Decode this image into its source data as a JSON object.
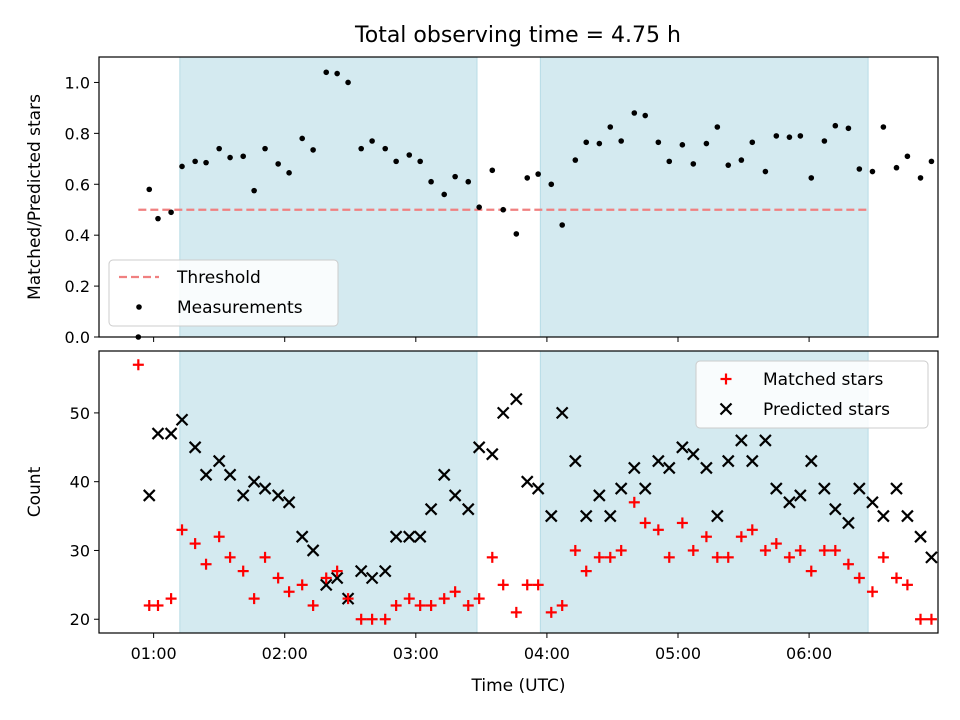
{
  "title": "Total observing time = 4.75 h",
  "chart_data": [
    {
      "type": "scatter",
      "panel": "top",
      "ylabel": "Matched/Predicted stars",
      "ylim": [
        0,
        1.1
      ],
      "yticks": [
        0.0,
        0.2,
        0.4,
        0.6,
        0.8,
        1.0
      ],
      "ytick_labels": [
        "0.0",
        "0.2",
        "0.4",
        "0.6",
        "0.8",
        "1.0"
      ],
      "xlim": [
        "00:35",
        "06:59"
      ],
      "threshold": {
        "name": "Threshold",
        "value": 0.5,
        "x_range": [
          "00:53",
          "06:27"
        ],
        "color": "#f08080"
      },
      "shaded_intervals": [
        [
          "01:12",
          "03:28"
        ],
        [
          "03:57",
          "06:27"
        ]
      ],
      "legend_position": "lower left",
      "series": [
        {
          "name": "Measurements",
          "color": "#000000",
          "points": [
            [
              "00:53",
              0.0
            ],
            [
              "00:58",
              0.58
            ],
            [
              "01:02",
              0.465
            ],
            [
              "01:08",
              0.49
            ],
            [
              "01:13",
              0.67
            ],
            [
              "01:19",
              0.69
            ],
            [
              "01:24",
              0.685
            ],
            [
              "01:30",
              0.74
            ],
            [
              "01:35",
              0.705
            ],
            [
              "01:41",
              0.71
            ],
            [
              "01:46",
              0.575
            ],
            [
              "01:51",
              0.74
            ],
            [
              "01:57",
              0.68
            ],
            [
              "02:02",
              0.645
            ],
            [
              "02:08",
              0.78
            ],
            [
              "02:13",
              0.735
            ],
            [
              "02:19",
              1.04
            ],
            [
              "02:24",
              1.035
            ],
            [
              "02:29",
              1.0
            ],
            [
              "02:35",
              0.74
            ],
            [
              "02:40",
              0.77
            ],
            [
              "02:46",
              0.74
            ],
            [
              "02:51",
              0.69
            ],
            [
              "02:57",
              0.715
            ],
            [
              "03:02",
              0.69
            ],
            [
              "03:07",
              0.61
            ],
            [
              "03:13",
              0.56
            ],
            [
              "03:18",
              0.63
            ],
            [
              "03:24",
              0.61
            ],
            [
              "03:29",
              0.51
            ],
            [
              "03:35",
              0.655
            ],
            [
              "03:40",
              0.5
            ],
            [
              "03:46",
              0.405
            ],
            [
              "03:51",
              0.625
            ],
            [
              "03:56",
              0.64
            ],
            [
              "04:02",
              0.6
            ],
            [
              "04:07",
              0.44
            ],
            [
              "04:13",
              0.695
            ],
            [
              "04:18",
              0.765
            ],
            [
              "04:24",
              0.76
            ],
            [
              "04:29",
              0.825
            ],
            [
              "04:34",
              0.77
            ],
            [
              "04:40",
              0.88
            ],
            [
              "04:45",
              0.87
            ],
            [
              "04:51",
              0.765
            ],
            [
              "04:56",
              0.69
            ],
            [
              "05:02",
              0.755
            ],
            [
              "05:07",
              0.68
            ],
            [
              "05:13",
              0.76
            ],
            [
              "05:18",
              0.825
            ],
            [
              "05:23",
              0.675
            ],
            [
              "05:29",
              0.695
            ],
            [
              "05:34",
              0.765
            ],
            [
              "05:40",
              0.65
            ],
            [
              "05:45",
              0.79
            ],
            [
              "05:51",
              0.785
            ],
            [
              "05:56",
              0.79
            ],
            [
              "06:01",
              0.625
            ],
            [
              "06:07",
              0.77
            ],
            [
              "06:12",
              0.83
            ],
            [
              "06:18",
              0.82
            ],
            [
              "06:23",
              0.66
            ],
            [
              "06:29",
              0.65
            ],
            [
              "06:34",
              0.825
            ],
            [
              "06:40",
              0.665
            ],
            [
              "06:45",
              0.71
            ],
            [
              "06:51",
              0.625
            ],
            [
              "06:56",
              0.69
            ]
          ]
        }
      ]
    },
    {
      "type": "scatter",
      "panel": "bottom",
      "xlabel": "Time (UTC)",
      "ylabel": "Count",
      "ylim": [
        18,
        59
      ],
      "yticks": [
        20,
        30,
        40,
        50
      ],
      "ytick_labels": [
        "20",
        "30",
        "40",
        "50"
      ],
      "xlim": [
        "00:35",
        "06:59"
      ],
      "xticks": [
        "01:00",
        "02:00",
        "03:00",
        "04:00",
        "05:00",
        "06:00"
      ],
      "xtick_labels": [
        "01:00",
        "02:00",
        "03:00",
        "04:00",
        "05:00",
        "06:00"
      ],
      "shaded_intervals": [
        [
          "01:12",
          "03:28"
        ],
        [
          "03:57",
          "06:27"
        ]
      ],
      "legend_position": "upper right",
      "series": [
        {
          "name": "Matched stars",
          "color": "#ff0000",
          "points": [
            [
              "00:53",
              57
            ],
            [
              "00:58",
              22
            ],
            [
              "01:02",
              22
            ],
            [
              "01:08",
              23
            ],
            [
              "01:13",
              33
            ],
            [
              "01:19",
              31
            ],
            [
              "01:24",
              28
            ],
            [
              "01:30",
              32
            ],
            [
              "01:35",
              29
            ],
            [
              "01:41",
              27
            ],
            [
              "01:46",
              23
            ],
            [
              "01:51",
              29
            ],
            [
              "01:57",
              26
            ],
            [
              "02:02",
              24
            ],
            [
              "02:08",
              25
            ],
            [
              "02:13",
              22
            ],
            [
              "02:19",
              26
            ],
            [
              "02:24",
              27
            ],
            [
              "02:29",
              23
            ],
            [
              "02:35",
              20
            ],
            [
              "02:40",
              20
            ],
            [
              "02:46",
              20
            ],
            [
              "02:51",
              22
            ],
            [
              "02:57",
              23
            ],
            [
              "03:02",
              22
            ],
            [
              "03:07",
              22
            ],
            [
              "03:13",
              23
            ],
            [
              "03:18",
              24
            ],
            [
              "03:24",
              22
            ],
            [
              "03:29",
              23
            ],
            [
              "03:35",
              29
            ],
            [
              "03:40",
              25
            ],
            [
              "03:46",
              21
            ],
            [
              "03:51",
              25
            ],
            [
              "03:56",
              25
            ],
            [
              "04:02",
              21
            ],
            [
              "04:07",
              22
            ],
            [
              "04:13",
              30
            ],
            [
              "04:18",
              27
            ],
            [
              "04:24",
              29
            ],
            [
              "04:29",
              29
            ],
            [
              "04:34",
              30
            ],
            [
              "04:40",
              37
            ],
            [
              "04:45",
              34
            ],
            [
              "04:51",
              33
            ],
            [
              "04:56",
              29
            ],
            [
              "05:02",
              34
            ],
            [
              "05:07",
              30
            ],
            [
              "05:13",
              32
            ],
            [
              "05:18",
              29
            ],
            [
              "05:23",
              29
            ],
            [
              "05:29",
              32
            ],
            [
              "05:34",
              33
            ],
            [
              "05:40",
              30
            ],
            [
              "05:45",
              31
            ],
            [
              "05:51",
              29
            ],
            [
              "05:56",
              30
            ],
            [
              "06:01",
              27
            ],
            [
              "06:07",
              30
            ],
            [
              "06:12",
              30
            ],
            [
              "06:18",
              28
            ],
            [
              "06:23",
              26
            ],
            [
              "06:29",
              24
            ],
            [
              "06:34",
              29
            ],
            [
              "06:40",
              26
            ],
            [
              "06:45",
              25
            ],
            [
              "06:51",
              20
            ],
            [
              "06:56",
              20
            ]
          ]
        },
        {
          "name": "Predicted stars",
          "color": "#000000",
          "points": [
            [
              "00:58",
              38
            ],
            [
              "01:02",
              47
            ],
            [
              "01:08",
              47
            ],
            [
              "01:13",
              49
            ],
            [
              "01:19",
              45
            ],
            [
              "01:24",
              41
            ],
            [
              "01:30",
              43
            ],
            [
              "01:35",
              41
            ],
            [
              "01:41",
              38
            ],
            [
              "01:46",
              40
            ],
            [
              "01:51",
              39
            ],
            [
              "01:57",
              38
            ],
            [
              "02:02",
              37
            ],
            [
              "02:08",
              32
            ],
            [
              "02:13",
              30
            ],
            [
              "02:19",
              25
            ],
            [
              "02:24",
              26
            ],
            [
              "02:29",
              23
            ],
            [
              "02:35",
              27
            ],
            [
              "02:40",
              26
            ],
            [
              "02:46",
              27
            ],
            [
              "02:51",
              32
            ],
            [
              "02:57",
              32
            ],
            [
              "03:02",
              32
            ],
            [
              "03:07",
              36
            ],
            [
              "03:13",
              41
            ],
            [
              "03:18",
              38
            ],
            [
              "03:24",
              36
            ],
            [
              "03:29",
              45
            ],
            [
              "03:35",
              44
            ],
            [
              "03:40",
              50
            ],
            [
              "03:46",
              52
            ],
            [
              "03:51",
              40
            ],
            [
              "03:56",
              39
            ],
            [
              "04:02",
              35
            ],
            [
              "04:07",
              50
            ],
            [
              "04:13",
              43
            ],
            [
              "04:18",
              35
            ],
            [
              "04:24",
              38
            ],
            [
              "04:29",
              35
            ],
            [
              "04:34",
              39
            ],
            [
              "04:40",
              42
            ],
            [
              "04:45",
              39
            ],
            [
              "04:51",
              43
            ],
            [
              "04:56",
              42
            ],
            [
              "05:02",
              45
            ],
            [
              "05:07",
              44
            ],
            [
              "05:13",
              42
            ],
            [
              "05:18",
              35
            ],
            [
              "05:23",
              43
            ],
            [
              "05:29",
              46
            ],
            [
              "05:34",
              43
            ],
            [
              "05:40",
              46
            ],
            [
              "05:45",
              39
            ],
            [
              "05:51",
              37
            ],
            [
              "05:56",
              38
            ],
            [
              "06:01",
              43
            ],
            [
              "06:07",
              39
            ],
            [
              "06:12",
              36
            ],
            [
              "06:18",
              34
            ],
            [
              "06:23",
              39
            ],
            [
              "06:29",
              37
            ],
            [
              "06:34",
              35
            ],
            [
              "06:40",
              39
            ],
            [
              "06:45",
              35
            ],
            [
              "06:51",
              32
            ],
            [
              "06:56",
              29
            ]
          ]
        }
      ]
    }
  ],
  "colors": {
    "shade": "#d4eaf0",
    "shade_edge": "#b7dce6"
  }
}
